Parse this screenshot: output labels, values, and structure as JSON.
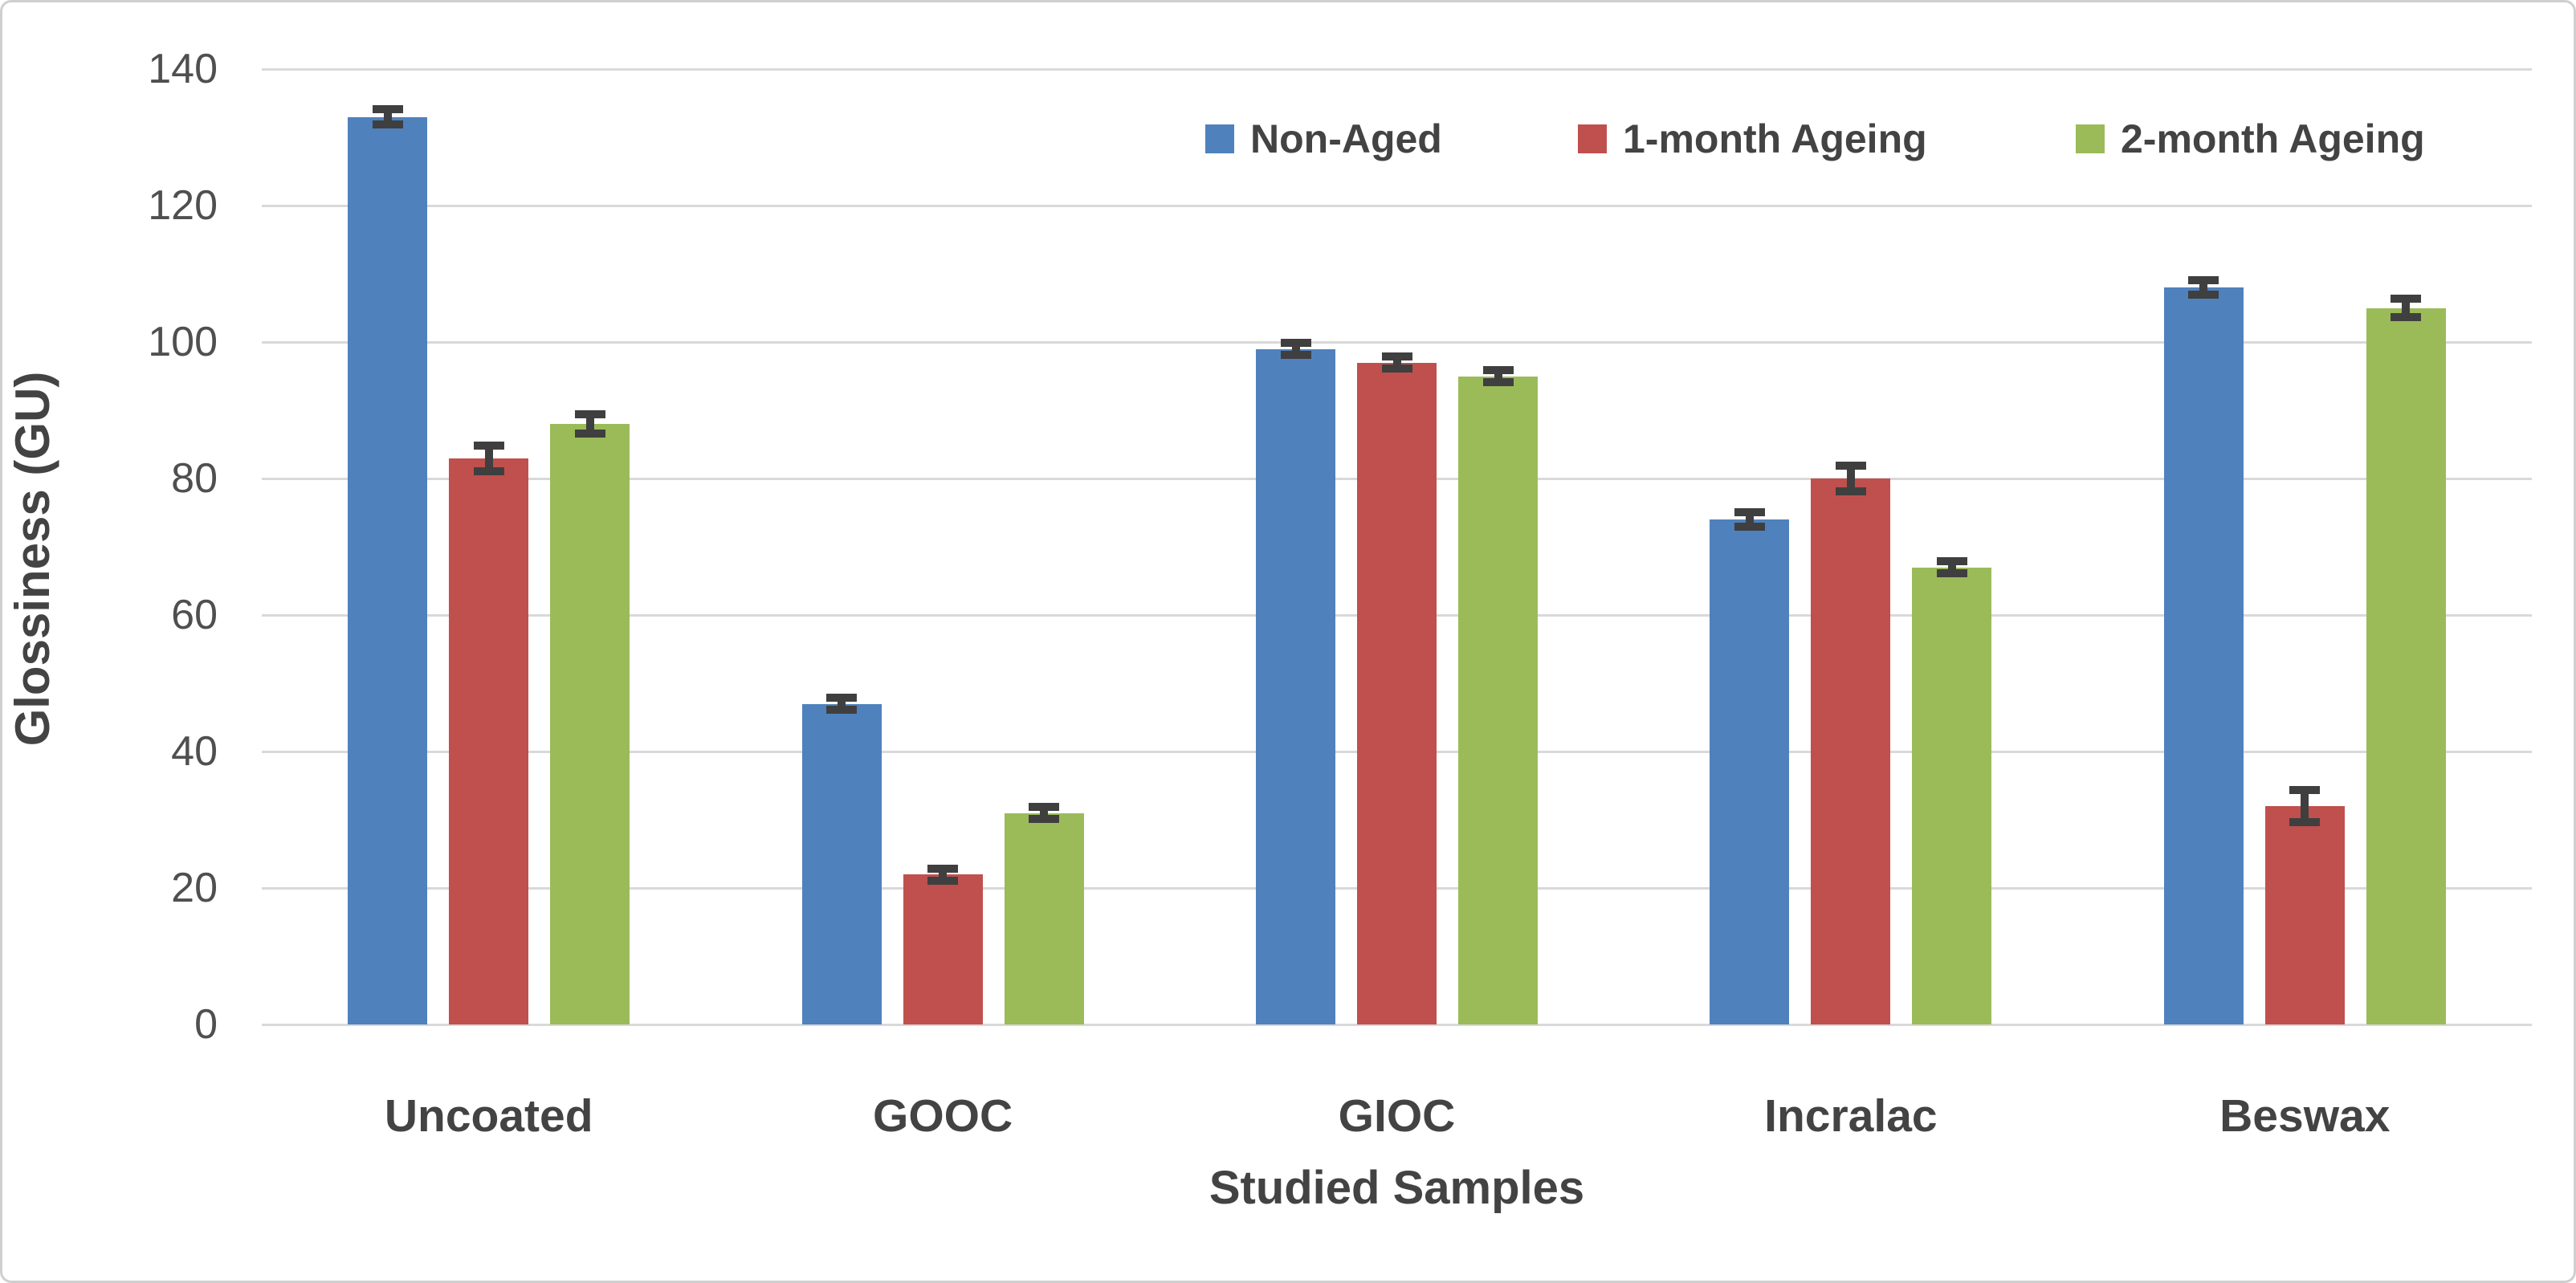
{
  "chart_data": {
    "type": "bar",
    "title": "",
    "categories": [
      "Uncoated",
      "GOOC",
      "GIOC",
      "Incralac",
      "Beswax"
    ],
    "series": [
      {
        "name": "Non-Aged",
        "color": "#4F81BD",
        "values": [
          133,
          47,
          99,
          74,
          108
        ],
        "error_bars": [
          1.2,
          1,
          1,
          1.2,
          1.2
        ]
      },
      {
        "name": "1-month Ageing",
        "color": "#C0504D",
        "values": [
          83,
          22,
          97,
          80,
          32
        ],
        "error_bars": [
          2,
          1,
          1,
          2,
          2.5
        ]
      },
      {
        "name": "2-month Ageing",
        "color": "#9BBB59",
        "values": [
          88,
          31,
          95,
          67,
          105
        ],
        "error_bars": [
          1.5,
          1,
          1,
          1,
          1.5
        ]
      }
    ],
    "xlabel": "Studied Samples",
    "ylabel": "Glossiness (GU)",
    "ylim": [
      0,
      140
    ],
    "ytick_step": 20,
    "ytick_labels": [
      "0",
      "20",
      "40",
      "60",
      "80",
      "100",
      "120",
      "140"
    ],
    "grid": true,
    "legend_position": "top-right",
    "colors": {
      "gridline": "#d9d9d9",
      "error_bar": "#3f3f3f",
      "tick_text": "#4f4f4f",
      "label_text": "#434343"
    }
  }
}
